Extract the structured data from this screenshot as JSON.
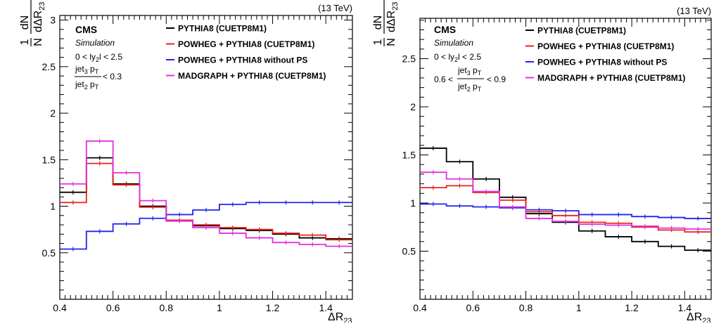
{
  "chart_data": [
    {
      "type": "line",
      "energy_label": "(13 TeV)",
      "experiment": "CMS",
      "status": "Simulation",
      "xlabel": "ΔR",
      "xlabel_sub": "23",
      "ylabel_num_1": "1",
      "ylabel_den_1": "N",
      "ylabel_num_2": "dN",
      "ylabel_den_2": "dΔR",
      "ylabel_den_2_sub": "23",
      "cut_rapidity": "0 < ly",
      "cut_rapidity_sub": "2",
      "cut_rapidity_tail": "l < 2.5",
      "cut_ratio_num": "jet",
      "cut_ratio_num_sub": "3",
      "cut_ratio_num_tail": " p",
      "cut_ratio_num_tail_sub": "T",
      "cut_ratio_den": "jet",
      "cut_ratio_den_sub": "2",
      "cut_ratio_den_tail": " p",
      "cut_ratio_den_tail_sub": "T",
      "cut_ratio_prefix": "",
      "cut_ratio_suffix": "< 0.3",
      "xlim": [
        0.4,
        1.5
      ],
      "ylim": [
        0,
        3.05
      ],
      "xticks": [
        0.4,
        0.6,
        0.8,
        1,
        1.2,
        1.4
      ],
      "xtick_labels": [
        "0.4",
        "0.6",
        "0.8",
        "1",
        "1.2",
        "1.4"
      ],
      "yticks": [
        0.5,
        1,
        1.5,
        2,
        2.5,
        3
      ],
      "ytick_labels": [
        "0.5",
        "1",
        "1.5",
        "2",
        "2.5",
        "3"
      ],
      "bin_edges": [
        0.4,
        0.5,
        0.6,
        0.7,
        0.8,
        0.9,
        1.0,
        1.1,
        1.2,
        1.3,
        1.4,
        1.5
      ],
      "series": [
        {
          "name": "PYTHIA8 (CUETP8M1)",
          "color": "#000000",
          "values": [
            1.15,
            1.52,
            1.24,
            1.0,
            0.85,
            0.79,
            0.76,
            0.74,
            0.7,
            0.66,
            0.65
          ]
        },
        {
          "name": "POWHEG + PYTHIA8 (CUETP8M1)",
          "color": "#e8221d",
          "values": [
            1.04,
            1.46,
            1.23,
            0.99,
            0.85,
            0.8,
            0.77,
            0.75,
            0.71,
            0.69,
            0.64
          ]
        },
        {
          "name": "POWHEG + PYTHIA8 without PS",
          "color": "#2424ee",
          "values": [
            0.54,
            0.73,
            0.81,
            0.87,
            0.91,
            0.96,
            1.02,
            1.04,
            1.04,
            1.04,
            1.04
          ]
        },
        {
          "name": "MADGRAPH + PYTHIA8 (CUETP8M1)",
          "color": "#e030e0",
          "values": [
            1.24,
            1.7,
            1.36,
            1.06,
            0.84,
            0.77,
            0.71,
            0.66,
            0.61,
            0.59,
            0.57
          ]
        }
      ]
    },
    {
      "type": "line",
      "energy_label": "(13 TeV)",
      "experiment": "CMS",
      "status": "Simulation",
      "xlabel": "ΔR",
      "xlabel_sub": "23",
      "ylabel_num_1": "1",
      "ylabel_den_1": "N",
      "ylabel_num_2": "dN",
      "ylabel_den_2": "dΔR",
      "ylabel_den_2_sub": "23",
      "cut_rapidity": "0 < ly",
      "cut_rapidity_sub": "2",
      "cut_rapidity_tail": "l < 2.5",
      "cut_ratio_num": "jet",
      "cut_ratio_num_sub": "3",
      "cut_ratio_num_tail": " p",
      "cut_ratio_num_tail_sub": "T",
      "cut_ratio_den": "jet",
      "cut_ratio_den_sub": "2",
      "cut_ratio_den_tail": " p",
      "cut_ratio_den_tail_sub": "T",
      "cut_ratio_prefix": "0.6 <",
      "cut_ratio_suffix": "< 0.9",
      "xlim": [
        0.4,
        1.5
      ],
      "ylim": [
        0,
        2.92
      ],
      "xticks": [
        0.4,
        0.6,
        0.8,
        1,
        1.2,
        1.4
      ],
      "xtick_labels": [
        "0.4",
        "0.6",
        "0.8",
        "1",
        "1.2",
        "1.4"
      ],
      "yticks": [
        0.5,
        1,
        1.5,
        2,
        2.5
      ],
      "ytick_labels": [
        "0.5",
        "1",
        "1.5",
        "2",
        "2.5"
      ],
      "bin_edges": [
        0.4,
        0.5,
        0.6,
        0.7,
        0.8,
        0.9,
        1.0,
        1.1,
        1.2,
        1.3,
        1.4,
        1.5
      ],
      "series": [
        {
          "name": "PYTHIA8 (CUETP8M1)",
          "color": "#000000",
          "values": [
            1.57,
            1.43,
            1.25,
            1.06,
            0.89,
            0.8,
            0.71,
            0.65,
            0.6,
            0.55,
            0.51
          ]
        },
        {
          "name": "POWHEG + PYTHIA8 (CUETP8M1)",
          "color": "#e8221d",
          "values": [
            1.16,
            1.18,
            1.11,
            1.03,
            0.91,
            0.87,
            0.8,
            0.79,
            0.75,
            0.72,
            0.7
          ]
        },
        {
          "name": "POWHEG + PYTHIA8 without PS",
          "color": "#2424ee",
          "values": [
            0.99,
            0.97,
            0.96,
            0.95,
            0.93,
            0.92,
            0.88,
            0.88,
            0.86,
            0.85,
            0.84
          ]
        },
        {
          "name": "MADGRAPH + PYTHIA8 (CUETP8M1)",
          "color": "#e030e0",
          "values": [
            1.32,
            1.25,
            1.12,
            0.96,
            0.84,
            0.81,
            0.78,
            0.77,
            0.76,
            0.74,
            0.73
          ]
        }
      ]
    }
  ]
}
